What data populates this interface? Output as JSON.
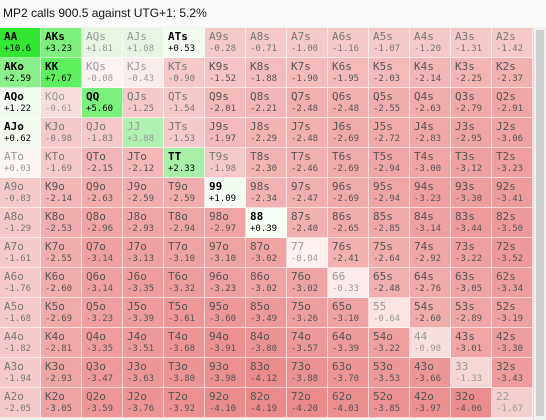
{
  "title": "MP2 calls 900.5 against UTG+1: 5.2%",
  "grid": [
    [
      [
        "AA",
        "+10.6",
        "g"
      ],
      [
        "AKs",
        "+3.23",
        "g"
      ],
      [
        "AQs",
        "+1.81",
        "f"
      ],
      [
        "AJs",
        "+1.08",
        "f"
      ],
      [
        "ATs",
        "+0.53",
        "w"
      ],
      [
        "A9s",
        "-0.28",
        "p"
      ],
      [
        "A8s",
        "-0.71",
        "p"
      ],
      [
        "A7s",
        "-1.00",
        "p"
      ],
      [
        "A6s",
        "-1.16",
        "p"
      ],
      [
        "A5s",
        "-1.07",
        "p"
      ],
      [
        "A4s",
        "-1.20",
        "p"
      ],
      [
        "A3s",
        "-1.31",
        "p"
      ],
      [
        "A2s",
        "-1.42",
        "p"
      ]
    ],
    [
      [
        "AKo",
        "+2.59",
        "g"
      ],
      [
        "KK",
        "+7.67",
        "g"
      ],
      [
        "KQs",
        "-0.08",
        "f"
      ],
      [
        "KJs",
        "-0.43",
        "f"
      ],
      [
        "KTs",
        "-0.90",
        "p"
      ],
      [
        "K9s",
        "-1.52",
        "r"
      ],
      [
        "K8s",
        "-1.88",
        "r"
      ],
      [
        "K7s",
        "-1.90",
        "r"
      ],
      [
        "K6s",
        "-1.95",
        "r"
      ],
      [
        "K5s",
        "-2.03",
        "r"
      ],
      [
        "K4s",
        "-2.14",
        "r"
      ],
      [
        "K3s",
        "-2.25",
        "r"
      ],
      [
        "K2s",
        "-2.37",
        "r"
      ]
    ],
    [
      [
        "AQo",
        "+1.22",
        "w"
      ],
      [
        "KQo",
        "-0.61",
        "f"
      ],
      [
        "QQ",
        "+5.60",
        "g"
      ],
      [
        "QJs",
        "-1.25",
        "p"
      ],
      [
        "QTs",
        "-1.54",
        "p"
      ],
      [
        "Q9s",
        "-2.01",
        "r"
      ],
      [
        "Q8s",
        "-2.21",
        "r"
      ],
      [
        "Q7s",
        "-2.48",
        "r"
      ],
      [
        "Q6s",
        "-2.48",
        "r"
      ],
      [
        "Q5s",
        "-2.55",
        "r"
      ],
      [
        "Q4s",
        "-2.63",
        "r"
      ],
      [
        "Q3s",
        "-2.79",
        "r"
      ],
      [
        "Q2s",
        "-2.91",
        "r"
      ]
    ],
    [
      [
        "AJo",
        "+0.62",
        "w"
      ],
      [
        "KJo",
        "-0.98",
        "p"
      ],
      [
        "QJo",
        "-1.83",
        "p"
      ],
      [
        "JJ",
        "+3.88",
        "f"
      ],
      [
        "JTs",
        "-1.53",
        "p"
      ],
      [
        "J9s",
        "-1.97",
        "r"
      ],
      [
        "J8s",
        "-2.29",
        "r"
      ],
      [
        "J7s",
        "-2.48",
        "r"
      ],
      [
        "J6s",
        "-2.69",
        "r"
      ],
      [
        "J5s",
        "-2.72",
        "r"
      ],
      [
        "J4s",
        "-2.83",
        "r"
      ],
      [
        "J3s",
        "-2.95",
        "r"
      ],
      [
        "J2s",
        "-3.06",
        "r"
      ]
    ],
    [
      [
        "ATo",
        "+0.03",
        "f"
      ],
      [
        "KTo",
        "-1.69",
        "p"
      ],
      [
        "QTo",
        "-2.15",
        "r"
      ],
      [
        "JTo",
        "-2.12",
        "r"
      ],
      [
        "TT",
        "+2.33",
        "g"
      ],
      [
        "T9s",
        "-1.98",
        "p"
      ],
      [
        "T8s",
        "-2.30",
        "r"
      ],
      [
        "T7s",
        "-2.46",
        "r"
      ],
      [
        "T6s",
        "-2.69",
        "r"
      ],
      [
        "T5s",
        "-2.94",
        "r"
      ],
      [
        "T4s",
        "-3.00",
        "r"
      ],
      [
        "T3s",
        "-3.12",
        "r"
      ],
      [
        "T2s",
        "-3.23",
        "r"
      ]
    ],
    [
      [
        "A9o",
        "-0.83",
        "p"
      ],
      [
        "K9o",
        "-2.14",
        "r"
      ],
      [
        "Q9o",
        "-2.63",
        "r"
      ],
      [
        "J9o",
        "-2.59",
        "r"
      ],
      [
        "T9o",
        "-2.59",
        "r"
      ],
      [
        "99",
        "+1.09",
        "w"
      ],
      [
        "98s",
        "-2.34",
        "r"
      ],
      [
        "97s",
        "-2.47",
        "r"
      ],
      [
        "96s",
        "-2.69",
        "r"
      ],
      [
        "95s",
        "-2.94",
        "r"
      ],
      [
        "94s",
        "-3.23",
        "r"
      ],
      [
        "93s",
        "-3.30",
        "r"
      ],
      [
        "92s",
        "-3.41",
        "r"
      ]
    ],
    [
      [
        "A8o",
        "-1.29",
        "p"
      ],
      [
        "K8o",
        "-2.53",
        "r"
      ],
      [
        "Q8o",
        "-2.96",
        "r"
      ],
      [
        "J8o",
        "-2.93",
        "r"
      ],
      [
        "T8o",
        "-2.94",
        "r"
      ],
      [
        "98o",
        "-2.97",
        "r"
      ],
      [
        "88",
        "+0.39",
        "w"
      ],
      [
        "87s",
        "-2.40",
        "r"
      ],
      [
        "86s",
        "-2.65",
        "r"
      ],
      [
        "85s",
        "-2.85",
        "r"
      ],
      [
        "84s",
        "-3.14",
        "r"
      ],
      [
        "83s",
        "-3.44",
        "r"
      ],
      [
        "82s",
        "-3.50",
        "r"
      ]
    ],
    [
      [
        "A7o",
        "-1.61",
        "p"
      ],
      [
        "K7o",
        "-2.55",
        "r"
      ],
      [
        "Q7o",
        "-3.14",
        "r"
      ],
      [
        "J7o",
        "-3.13",
        "r"
      ],
      [
        "T7o",
        "-3.10",
        "r"
      ],
      [
        "97o",
        "-3.10",
        "r"
      ],
      [
        "87o",
        "-3.02",
        "r"
      ],
      [
        "77",
        "-0.04",
        "f"
      ],
      [
        "76s",
        "-2.41",
        "r"
      ],
      [
        "75s",
        "-2.64",
        "r"
      ],
      [
        "74s",
        "-2.92",
        "r"
      ],
      [
        "73s",
        "-3.22",
        "r"
      ],
      [
        "72s",
        "-3.52",
        "r"
      ]
    ],
    [
      [
        "A6o",
        "-1.76",
        "p"
      ],
      [
        "K6o",
        "-2.60",
        "r"
      ],
      [
        "Q6o",
        "-3.14",
        "r"
      ],
      [
        "J6o",
        "-3.35",
        "r"
      ],
      [
        "T6o",
        "-3.32",
        "r"
      ],
      [
        "96o",
        "-3.23",
        "r"
      ],
      [
        "86o",
        "-3.02",
        "r"
      ],
      [
        "76o",
        "-3.02",
        "r"
      ],
      [
        "66",
        "-0.33",
        "f"
      ],
      [
        "65s",
        "-2.48",
        "r"
      ],
      [
        "64s",
        "-2.76",
        "r"
      ],
      [
        "63s",
        "-3.05",
        "r"
      ],
      [
        "62s",
        "-3.34",
        "r"
      ]
    ],
    [
      [
        "A5o",
        "-1.68",
        "p"
      ],
      [
        "K5o",
        "-2.69",
        "r"
      ],
      [
        "Q5o",
        "-3.23",
        "r"
      ],
      [
        "J5o",
        "-3.39",
        "r"
      ],
      [
        "T5o",
        "-3.61",
        "r"
      ],
      [
        "95o",
        "-3.60",
        "r"
      ],
      [
        "85o",
        "-3.49",
        "r"
      ],
      [
        "75o",
        "-3.26",
        "r"
      ],
      [
        "65o",
        "-3.10",
        "r"
      ],
      [
        "55",
        "-0.64",
        "f"
      ],
      [
        "54s",
        "-2.60",
        "r"
      ],
      [
        "53s",
        "-2.89",
        "r"
      ],
      [
        "52s",
        "-3.19",
        "r"
      ]
    ],
    [
      [
        "A4o",
        "-1.82",
        "p"
      ],
      [
        "K4o",
        "-2.81",
        "r"
      ],
      [
        "Q4o",
        "-3.35",
        "r"
      ],
      [
        "J4o",
        "-3.51",
        "r"
      ],
      [
        "T4o",
        "-3.68",
        "r"
      ],
      [
        "94o",
        "-3.91",
        "r"
      ],
      [
        "84o",
        "-3.80",
        "r"
      ],
      [
        "74o",
        "-3.57",
        "r"
      ],
      [
        "64o",
        "-3.39",
        "r"
      ],
      [
        "54o",
        "-3.22",
        "r"
      ],
      [
        "44",
        "-0.98",
        "f"
      ],
      [
        "43s",
        "-3.01",
        "r"
      ],
      [
        "42s",
        "-3.30",
        "r"
      ]
    ],
    [
      [
        "A3o",
        "-1.94",
        "p"
      ],
      [
        "K3o",
        "-2.93",
        "r"
      ],
      [
        "Q3o",
        "-3.47",
        "r"
      ],
      [
        "J3o",
        "-3.63",
        "r"
      ],
      [
        "T3o",
        "-3.80",
        "r"
      ],
      [
        "93o",
        "-3.98",
        "r"
      ],
      [
        "83o",
        "-4.12",
        "r"
      ],
      [
        "73o",
        "-3.88",
        "r"
      ],
      [
        "63o",
        "-3.70",
        "r"
      ],
      [
        "53o",
        "-3.53",
        "r"
      ],
      [
        "43o",
        "-3.66",
        "r"
      ],
      [
        "33",
        "-1.33",
        "f"
      ],
      [
        "32s",
        "-3.43",
        "r"
      ]
    ],
    [
      [
        "A2o",
        "-2.05",
        "p"
      ],
      [
        "K2o",
        "-3.05",
        "r"
      ],
      [
        "Q2o",
        "-3.59",
        "r"
      ],
      [
        "J2o",
        "-3.76",
        "r"
      ],
      [
        "T2o",
        "-3.92",
        "r"
      ],
      [
        "92o",
        "-4.10",
        "r"
      ],
      [
        "82o",
        "-4.19",
        "r"
      ],
      [
        "72o",
        "-4.20",
        "r"
      ],
      [
        "62o",
        "-4.03",
        "r"
      ],
      [
        "52o",
        "-3.85",
        "r"
      ],
      [
        "42o",
        "-3.97",
        "r"
      ],
      [
        "32o",
        "-4.06",
        "r"
      ],
      [
        "22",
        "-1.67",
        "f"
      ]
    ]
  ],
  "colors": {
    "g": {
      "bg": "#5cf25c",
      "fg": "#000000"
    },
    "w": {
      "bg": "#e4f8e0",
      "fg": "#000000"
    },
    "f": {
      "bg": "#fae6e6",
      "fg": "#9a9a9a"
    },
    "p": {
      "bg": "#f6c9c9",
      "fg": "#777777"
    },
    "r": {
      "bg": "#f2a7a7",
      "fg": "#555555"
    }
  }
}
